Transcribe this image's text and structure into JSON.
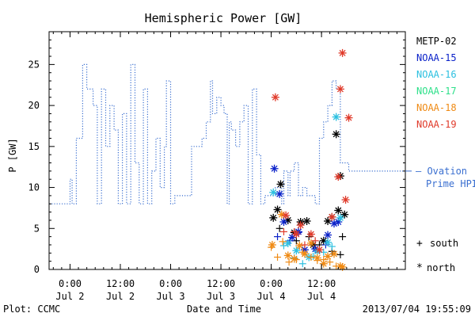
{
  "chart_data": {
    "type": "line",
    "title": "Hemispheric Power [GW]",
    "ylabel": "P [GW]",
    "xlabel": "Date and Time",
    "xlim": [
      "2013-07-01T19:00",
      "2013-07-05T08:00"
    ],
    "ylim": [
      0,
      29
    ],
    "yticks": [
      0,
      5,
      10,
      15,
      20,
      25
    ],
    "xticks": [
      {
        "time": "2013-07-02T00:00",
        "label1": "0:00",
        "label2": "Jul 2"
      },
      {
        "time": "2013-07-02T12:00",
        "label1": "12:00",
        "label2": "Jul 2"
      },
      {
        "time": "2013-07-03T00:00",
        "label1": "0:00",
        "label2": "Jul 3"
      },
      {
        "time": "2013-07-03T12:00",
        "label1": "12:00",
        "label2": "Jul 3"
      },
      {
        "time": "2013-07-04T00:00",
        "label1": "0:00",
        "label2": "Jul 4"
      },
      {
        "time": "2013-07-04T12:00",
        "label1": "12:00",
        "label2": "Jul 4"
      }
    ],
    "ovation": {
      "name": "Ovation Prime HPI",
      "label_line1": "— Ovation",
      "label_line2": "Prime HPI",
      "color": "#3a6fd0",
      "current_value": 12,
      "points": [
        [
          "2013-07-01T19:00",
          8
        ],
        [
          "2013-07-02T00:00",
          8
        ],
        [
          "2013-07-02T00:30",
          11
        ],
        [
          "2013-07-02T01:30",
          8
        ],
        [
          "2013-07-02T03:00",
          16
        ],
        [
          "2013-07-02T04:00",
          25
        ],
        [
          "2013-07-02T05:30",
          22
        ],
        [
          "2013-07-02T06:30",
          20
        ],
        [
          "2013-07-02T07:30",
          8
        ],
        [
          "2013-07-02T08:30",
          22
        ],
        [
          "2013-07-02T09:30",
          15
        ],
        [
          "2013-07-02T10:30",
          20
        ],
        [
          "2013-07-02T11:30",
          17
        ],
        [
          "2013-07-02T12:30",
          8
        ],
        [
          "2013-07-02T13:30",
          19
        ],
        [
          "2013-07-02T14:30",
          8
        ],
        [
          "2013-07-02T15:30",
          25
        ],
        [
          "2013-07-02T16:30",
          13
        ],
        [
          "2013-07-02T17:30",
          8
        ],
        [
          "2013-07-02T18:30",
          22
        ],
        [
          "2013-07-02T19:30",
          8
        ],
        [
          "2013-07-02T20:30",
          12
        ],
        [
          "2013-07-02T21:30",
          16
        ],
        [
          "2013-07-02T22:30",
          10
        ],
        [
          "2013-07-02T23:00",
          15
        ],
        [
          "2013-07-03T00:00",
          23
        ],
        [
          "2013-07-03T01:00",
          8
        ],
        [
          "2013-07-03T05:00",
          9
        ],
        [
          "2013-07-03T07:30",
          15
        ],
        [
          "2013-07-03T08:30",
          16
        ],
        [
          "2013-07-03T09:30",
          18
        ],
        [
          "2013-07-03T10:00",
          23
        ],
        [
          "2013-07-03T11:00",
          19
        ],
        [
          "2013-07-03T12:00",
          21
        ],
        [
          "2013-07-03T12:45",
          20
        ],
        [
          "2013-07-03T13:30",
          19
        ],
        [
          "2013-07-03T14:00",
          8
        ],
        [
          "2013-07-03T14:30",
          18
        ],
        [
          "2013-07-03T15:30",
          17
        ],
        [
          "2013-07-03T16:30",
          15
        ],
        [
          "2013-07-03T17:30",
          18
        ],
        [
          "2013-07-03T18:30",
          20
        ],
        [
          "2013-07-03T19:30",
          8
        ],
        [
          "2013-07-03T20:30",
          22
        ],
        [
          "2013-07-03T21:30",
          14
        ],
        [
          "2013-07-03T22:30",
          8
        ],
        [
          "2013-07-04T01:00",
          9
        ],
        [
          "2013-07-04T02:30",
          10
        ],
        [
          "2013-07-04T03:00",
          8
        ],
        [
          "2013-07-04T04:00",
          12
        ],
        [
          "2013-07-04T04:30",
          9
        ],
        [
          "2013-07-04T05:30",
          12
        ],
        [
          "2013-07-04T06:30",
          13
        ],
        [
          "2013-07-04T07:30",
          9
        ],
        [
          "2013-07-04T08:30",
          10
        ],
        [
          "2013-07-04T09:30",
          9
        ],
        [
          "2013-07-04T10:30",
          9
        ],
        [
          "2013-07-04T11:30",
          8
        ],
        [
          "2013-07-04T12:30",
          16
        ],
        [
          "2013-07-04T13:30",
          18
        ],
        [
          "2013-07-04T14:30",
          20
        ],
        [
          "2013-07-04T15:30",
          23
        ],
        [
          "2013-07-04T16:30",
          22
        ],
        [
          "2013-07-04T17:30",
          13
        ],
        [
          "2013-07-04T18:30",
          13
        ],
        [
          "2013-07-04T19:30",
          12
        ],
        [
          "2013-07-04T19:55",
          12
        ]
      ]
    },
    "satellites": [
      {
        "name": "METP-02",
        "color": "#000000",
        "south": [
          [
            "2013-07-04T02:00",
            5
          ],
          [
            "2013-07-04T06:00",
            3.5
          ],
          [
            "2013-07-04T09:00",
            4
          ],
          [
            "2013-07-04T11:30",
            3
          ],
          [
            "2013-07-04T14:30",
            2.2
          ],
          [
            "2013-07-04T16:30",
            1.8
          ],
          [
            "2013-07-04T17:00",
            4
          ]
        ],
        "north": [
          [
            "2013-07-04T00:30",
            6.3
          ],
          [
            "2013-07-04T01:30",
            7.3
          ],
          [
            "2013-07-04T02:15",
            10.4
          ],
          [
            "2013-07-04T04:00",
            6
          ],
          [
            "2013-07-04T05:30",
            4.5
          ],
          [
            "2013-07-04T07:00",
            5.8
          ],
          [
            "2013-07-04T08:30",
            5.9
          ],
          [
            "2013-07-04T10:00",
            3
          ],
          [
            "2013-07-04T12:30",
            3.5
          ],
          [
            "2013-07-04T13:30",
            5.9
          ],
          [
            "2013-07-04T14:30",
            6.4
          ],
          [
            "2013-07-04T15:30",
            16.5
          ],
          [
            "2013-07-04T16:00",
            7.2
          ],
          [
            "2013-07-04T16:30",
            11.4
          ],
          [
            "2013-07-04T17:30",
            6.7
          ]
        ]
      },
      {
        "name": "NOAA-15",
        "color": "#0b22c9",
        "south": [
          [
            "2013-07-04T01:30",
            4
          ],
          [
            "2013-07-04T04:30",
            3.5
          ],
          [
            "2013-07-04T06:30",
            4.5
          ],
          [
            "2013-07-04T13:00",
            3
          ]
        ],
        "north": [
          [
            "2013-07-04T00:45",
            12.3
          ],
          [
            "2013-07-04T02:00",
            9.2
          ],
          [
            "2013-07-04T03:00",
            5.8
          ],
          [
            "2013-07-04T05:00",
            3.9
          ],
          [
            "2013-07-04T06:30",
            4.6
          ],
          [
            "2013-07-04T08:00",
            2.4
          ],
          [
            "2013-07-04T10:30",
            2.5
          ],
          [
            "2013-07-04T13:30",
            4.2
          ],
          [
            "2013-07-04T15:00",
            5.6
          ],
          [
            "2013-07-04T16:00",
            5.8
          ]
        ]
      },
      {
        "name": "NOAA-16",
        "color": "#2cc0e0",
        "south": [
          [
            "2013-07-04T03:00",
            2.9
          ],
          [
            "2013-07-04T05:30",
            1.4
          ],
          [
            "2013-07-04T07:30",
            0.7
          ],
          [
            "2013-07-04T10:00",
            1.6
          ],
          [
            "2013-07-04T12:30",
            2.1
          ],
          [
            "2013-07-04T14:30",
            2.8
          ]
        ],
        "north": [
          [
            "2013-07-04T00:30",
            9.4
          ],
          [
            "2013-07-04T04:00",
            3.2
          ],
          [
            "2013-07-04T06:00",
            2.3
          ],
          [
            "2013-07-04T09:00",
            1.5
          ],
          [
            "2013-07-04T11:00",
            2.2
          ],
          [
            "2013-07-04T13:30",
            3.3
          ],
          [
            "2013-07-04T15:30",
            18.6
          ],
          [
            "2013-07-04T16:30",
            6.3
          ]
        ]
      },
      {
        "name": "NOAA-17",
        "color": "#2ee08a",
        "south": [],
        "north": []
      },
      {
        "name": "NOAA-18",
        "color": "#ef8a14",
        "south": [
          [
            "2013-07-04T00:00",
            2.7
          ],
          [
            "2013-07-04T01:30",
            1.5
          ],
          [
            "2013-07-04T02:45",
            3.4
          ],
          [
            "2013-07-04T04:15",
            0.9
          ],
          [
            "2013-07-04T06:00",
            1.2
          ],
          [
            "2013-07-04T07:30",
            2.1
          ],
          [
            "2013-07-04T09:30",
            1.5
          ],
          [
            "2013-07-04T11:00",
            1.1
          ],
          [
            "2013-07-04T12:30",
            1.2
          ],
          [
            "2013-07-04T14:00",
            0.9
          ],
          [
            "2013-07-04T15:30",
            0.4
          ]
        ],
        "north": [
          [
            "2013-07-04T00:15",
            3
          ],
          [
            "2013-07-04T02:30",
            6.7
          ],
          [
            "2013-07-04T04:00",
            1.7
          ],
          [
            "2013-07-04T05:30",
            1.3
          ],
          [
            "2013-07-04T06:45",
            2.9
          ],
          [
            "2013-07-04T08:00",
            1.9
          ],
          [
            "2013-07-04T09:30",
            3.2
          ],
          [
            "2013-07-04T11:00",
            1.4
          ],
          [
            "2013-07-04T12:30",
            0.7
          ],
          [
            "2013-07-04T13:30",
            1.6
          ],
          [
            "2013-07-04T15:00",
            1.9
          ],
          [
            "2013-07-04T16:30",
            0.4
          ],
          [
            "2013-07-04T17:00",
            0.3
          ]
        ]
      },
      {
        "name": "NOAA-19",
        "color": "#e03a2a",
        "south": [
          [
            "2013-07-04T03:00",
            4.6
          ],
          [
            "2013-07-04T05:30",
            4.6
          ],
          [
            "2013-07-04T08:00",
            3
          ],
          [
            "2013-07-04T10:30",
            3.5
          ]
        ],
        "north": [
          [
            "2013-07-04T01:00",
            21
          ],
          [
            "2013-07-04T03:30",
            6.6
          ],
          [
            "2013-07-04T06:00",
            4.3
          ],
          [
            "2013-07-04T07:00",
            5.4
          ],
          [
            "2013-07-04T09:30",
            4.3
          ],
          [
            "2013-07-04T11:30",
            2.4
          ],
          [
            "2013-07-04T14:30",
            6.4
          ],
          [
            "2013-07-04T16:00",
            11.3
          ],
          [
            "2013-07-04T16:30",
            22
          ],
          [
            "2013-07-04T17:00",
            26.4
          ],
          [
            "2013-07-04T17:45",
            8.5
          ],
          [
            "2013-07-04T18:30",
            18.5
          ]
        ]
      }
    ],
    "marker_legend": {
      "south_symbol": "+",
      "south_label": "south",
      "north_symbol": "*",
      "north_label": "north"
    }
  },
  "footer": {
    "plot_credit": "Plot: CCMC",
    "timestamp": "2013/07/04 19:55:09"
  }
}
